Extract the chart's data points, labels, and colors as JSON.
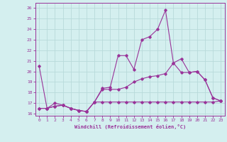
{
  "xlabel": "Windchill (Refroidissement éolien,°C)",
  "bg_color": "#d4efef",
  "grid_color": "#b8dada",
  "line_color": "#993399",
  "x": [
    0,
    1,
    2,
    3,
    4,
    5,
    6,
    7,
    8,
    9,
    10,
    11,
    12,
    13,
    14,
    15,
    16,
    17,
    18,
    19,
    20,
    21,
    22,
    23
  ],
  "line1": [
    20.5,
    16.5,
    17.0,
    16.8,
    16.5,
    16.3,
    16.2,
    17.1,
    18.4,
    18.5,
    21.5,
    21.5,
    20.2,
    23.0,
    23.3,
    24.0,
    25.8,
    20.8,
    21.2,
    19.9,
    20.0,
    19.2,
    17.5,
    17.2
  ],
  "line2": [
    16.5,
    16.5,
    16.7,
    16.8,
    16.5,
    16.3,
    16.2,
    17.1,
    18.3,
    18.3,
    18.3,
    18.5,
    19.0,
    19.3,
    19.5,
    19.6,
    19.8,
    20.8,
    19.9,
    19.9,
    20.0,
    19.2,
    17.5,
    17.2
  ],
  "line3": [
    16.5,
    16.5,
    16.7,
    16.8,
    16.5,
    16.3,
    16.2,
    17.1,
    17.1,
    17.1,
    17.1,
    17.1,
    17.1,
    17.1,
    17.1,
    17.1,
    17.1,
    17.1,
    17.1,
    17.1,
    17.1,
    17.1,
    17.1,
    17.2
  ],
  "ylim": [
    15.8,
    26.5
  ],
  "xlim": [
    -0.5,
    23.5
  ],
  "yticks": [
    16,
    17,
    18,
    19,
    20,
    21,
    22,
    23,
    24,
    25,
    26
  ],
  "xticks": [
    0,
    1,
    2,
    3,
    4,
    5,
    6,
    7,
    8,
    9,
    10,
    11,
    12,
    13,
    14,
    15,
    16,
    17,
    18,
    19,
    20,
    21,
    22,
    23
  ]
}
